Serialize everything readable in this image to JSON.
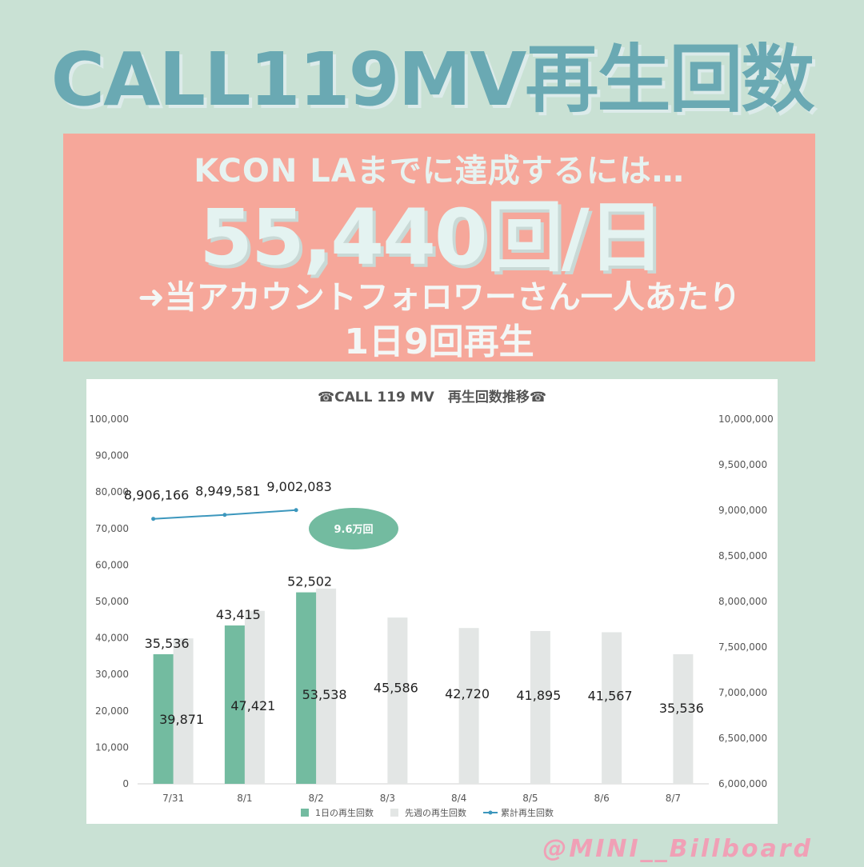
{
  "header": {
    "title": "CALL119MV再生回数"
  },
  "banner": {
    "line1": "KCON LAまでに達成するには…",
    "big": "55,440回/日",
    "line3": "➜当アカウントフォロワーさん一人あたり",
    "line4": "1日9回再生"
  },
  "footer": {
    "handle": "@MINI__Billboard"
  },
  "colors": {
    "background": "#c9e1d4",
    "title": "#6aa9b3",
    "banner": "#f6a79a",
    "daily_bar": "#73bba0",
    "prev_week_bar": "#e3e6e5",
    "cumulative_line": "#3c97bd",
    "annotation_ellipse": "#73bba0"
  },
  "chart_data": {
    "type": "bar",
    "title": "☎CALL 119 MV　再生回数推移☎",
    "categories": [
      "7/31",
      "8/1",
      "8/2",
      "8/3",
      "8/4",
      "8/5",
      "8/6",
      "8/7"
    ],
    "ylim": [
      0,
      100000
    ],
    "y2lim": [
      6000000,
      10000000
    ],
    "yticks": [
      "0",
      "10,000",
      "20,000",
      "30,000",
      "40,000",
      "50,000",
      "60,000",
      "70,000",
      "80,000",
      "90,000",
      "100,000"
    ],
    "y2ticks": [
      "6,000,000",
      "6,500,000",
      "7,000,000",
      "7,500,000",
      "8,000,000",
      "8,500,000",
      "9,000,000",
      "9,500,000",
      "10,000,000"
    ],
    "legend_position": "bottom",
    "grid": false,
    "series": [
      {
        "name": "1日の再生回数",
        "type": "bar",
        "values": [
          35536,
          43415,
          52502,
          null,
          null,
          null,
          null,
          null
        ],
        "labels": [
          "35,536",
          "43,415",
          "52,502"
        ]
      },
      {
        "name": "先週の再生回数",
        "type": "bar",
        "values": [
          39871,
          47421,
          53538,
          45586,
          42720,
          41895,
          41567,
          35536
        ],
        "labels": [
          "39,871",
          "47,421",
          "53,538",
          "45,586",
          "42,720",
          "41,895",
          "41,567",
          "35,536"
        ]
      },
      {
        "name": "累計再生回数",
        "type": "line",
        "axis": "right",
        "values": [
          8906166,
          8949581,
          9002083,
          null,
          null,
          null,
          null,
          null
        ],
        "labels": [
          "8,906,166",
          "8,949,581",
          "9,002,083"
        ]
      }
    ],
    "annotation": "9.6万回"
  }
}
